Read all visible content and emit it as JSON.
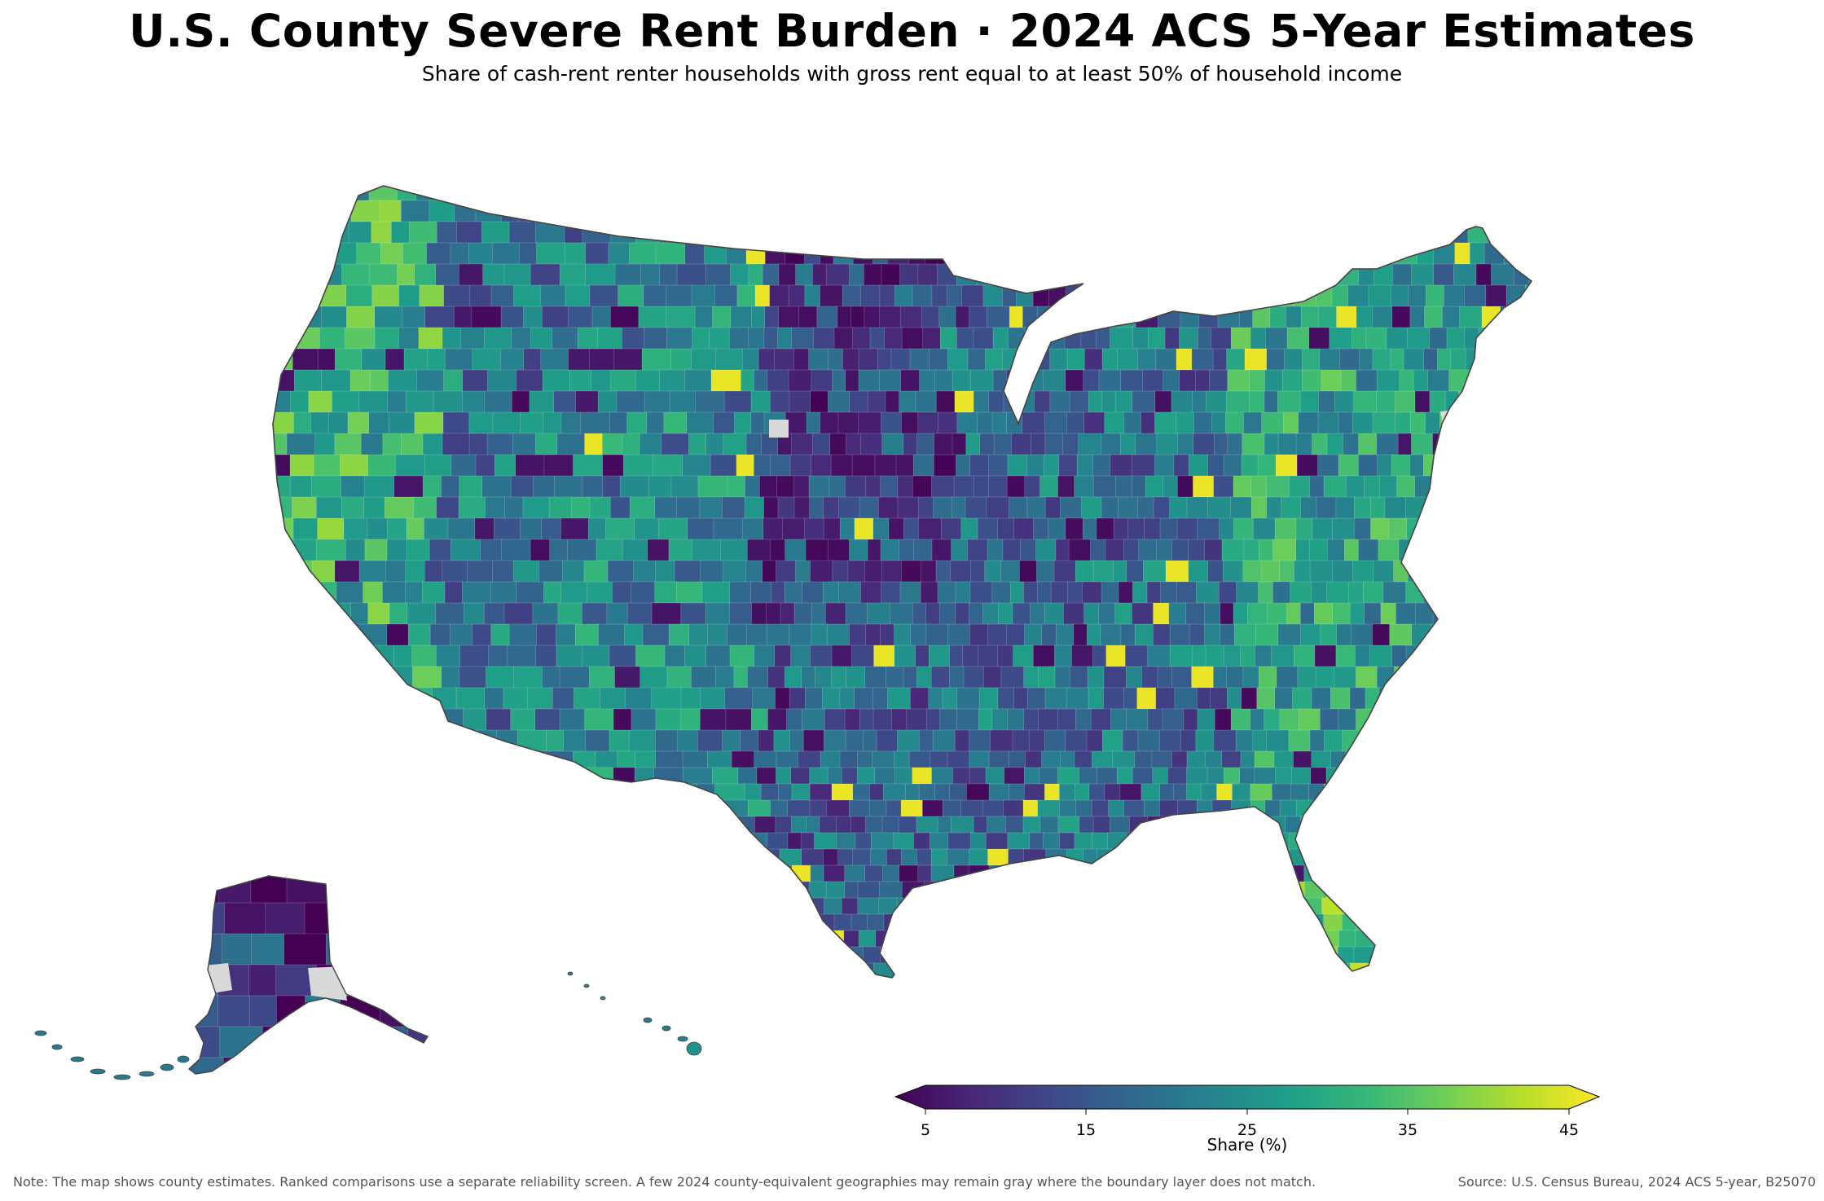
{
  "title": "U.S. County Severe Rent Burden · 2024 ACS 5-Year Estimates",
  "subtitle": "Share of cash-rent renter households with gross rent equal to at least 50% of household income",
  "colorbar": {
    "label": "Share (%)",
    "ticks": [
      "5",
      "15",
      "25",
      "35",
      "45"
    ],
    "min": 5,
    "max": 45,
    "extend": "both",
    "colormap": "viridis",
    "stops": [
      "#440154",
      "#482878",
      "#3e4989",
      "#31688e",
      "#26828e",
      "#1f9e89",
      "#35b779",
      "#6ece58",
      "#b5de2b",
      "#fde725"
    ]
  },
  "missing_color": "#d9d9d9",
  "border_color": "#555555",
  "note": "Note: The map shows county estimates. Ranked comparisons use a separate reliability screen. A few 2024 county-equivalent geographies may remain gray where the boundary layer does not match.",
  "source": "Source: U.S. Census Bureau, 2024 ACS 5-year, B25070"
}
